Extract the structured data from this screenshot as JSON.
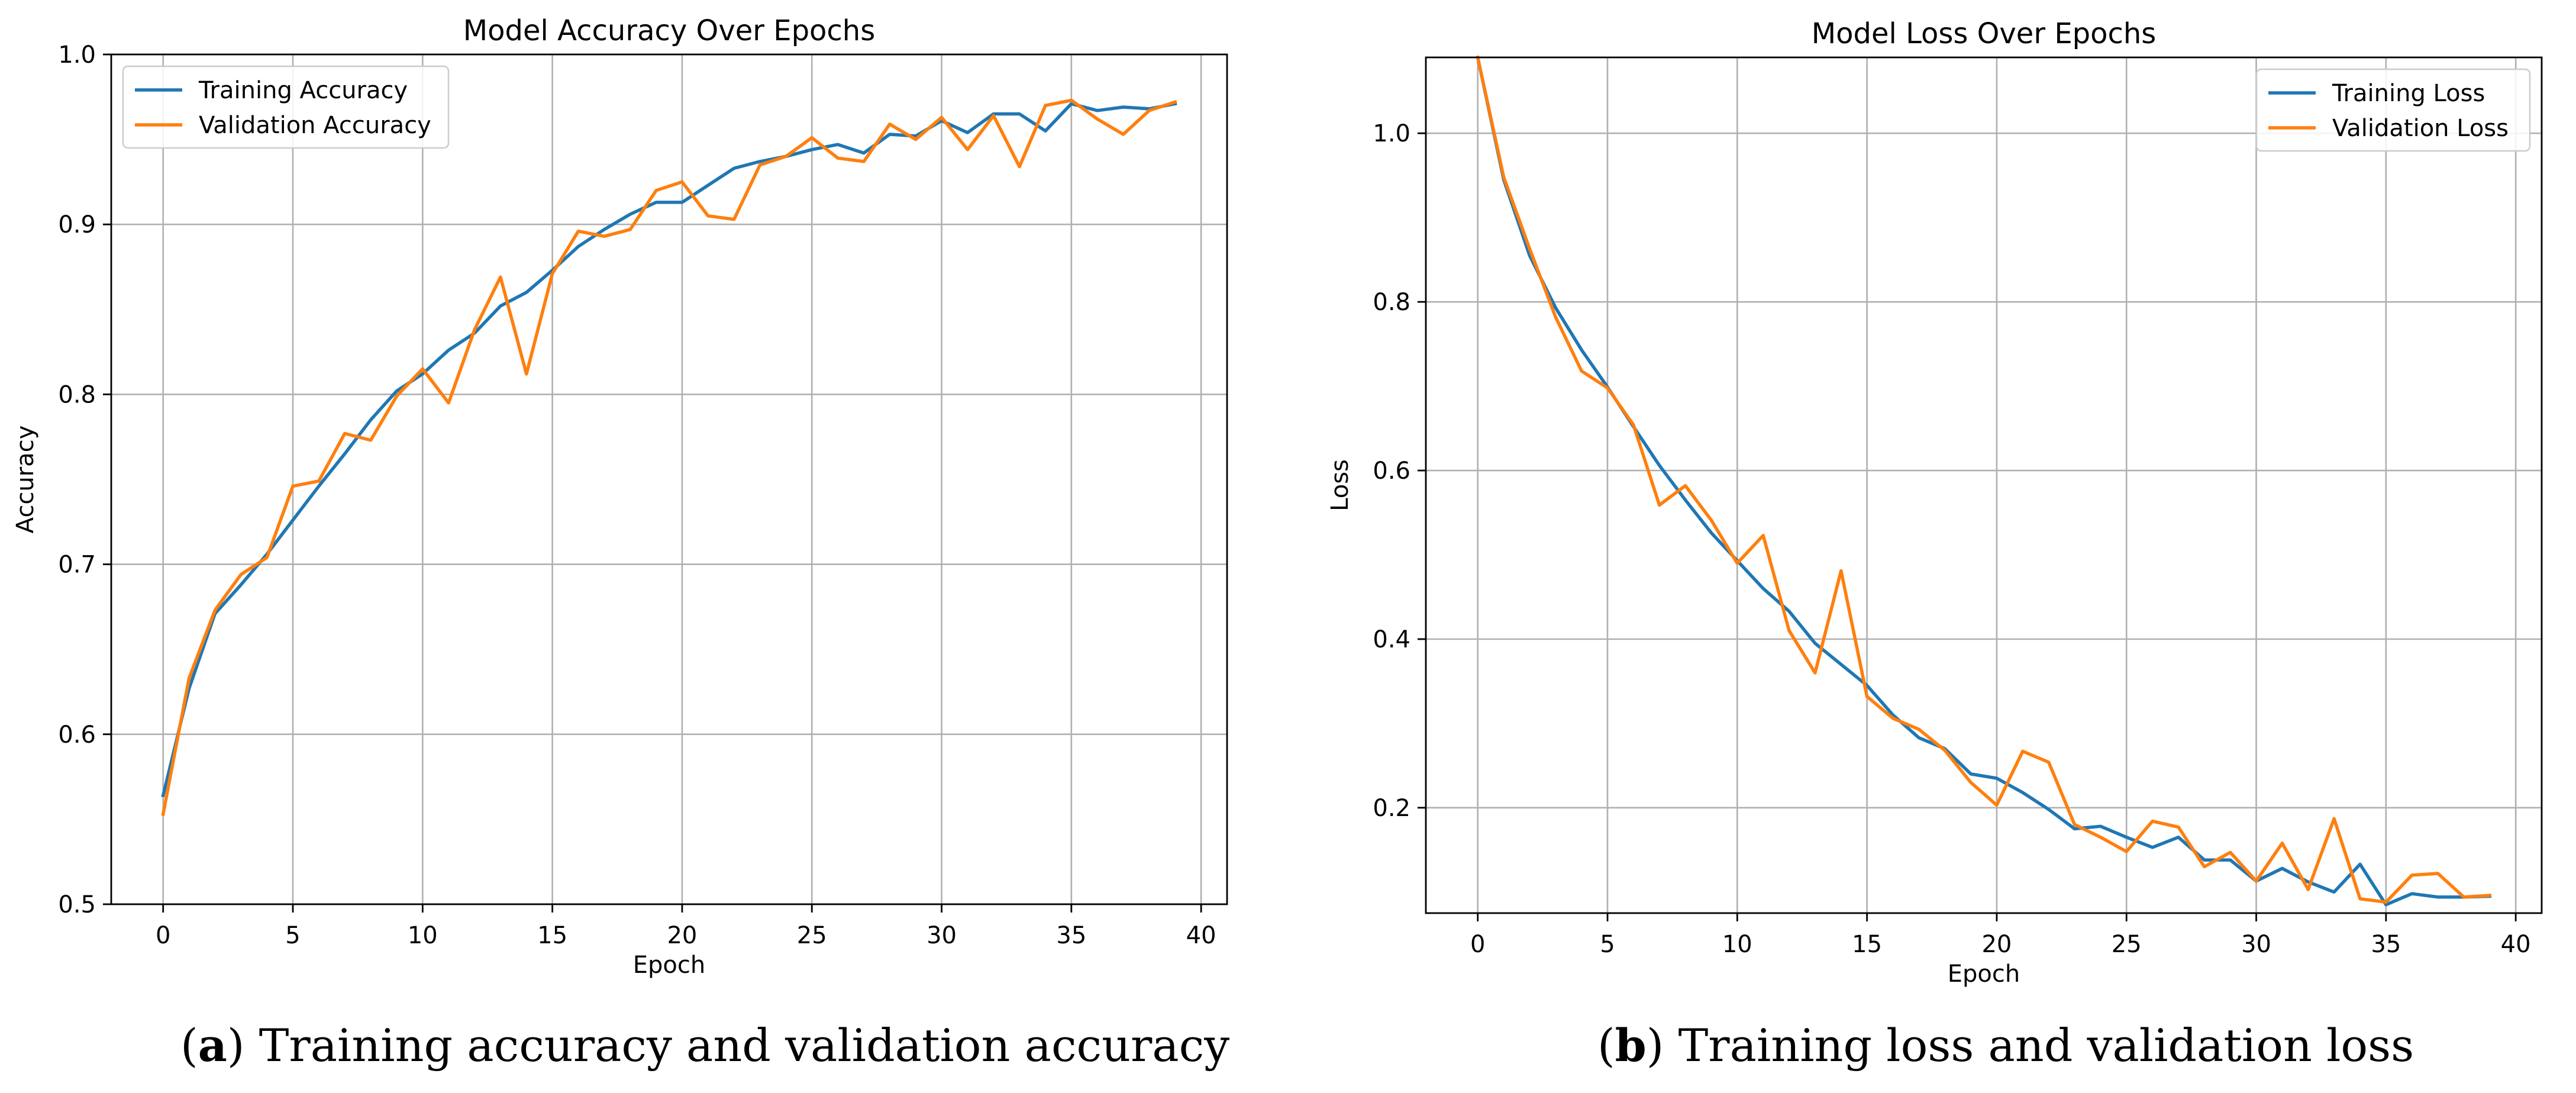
{
  "colors": {
    "training": "#1f77b4",
    "validation": "#ff7f0e",
    "grid": "#b0b0b0",
    "axis": "#000000"
  },
  "chart_data": [
    {
      "type": "line",
      "title": "Model Accuracy Over Epochs",
      "xlabel": "Epoch",
      "ylabel": "Accuracy",
      "xlim": [
        -2,
        41
      ],
      "ylim": [
        0.5,
        1.0
      ],
      "xticks": [
        0,
        5,
        10,
        15,
        20,
        25,
        30,
        35,
        40
      ],
      "yticks": [
        0.5,
        0.6,
        0.7,
        0.8,
        0.9,
        1.0
      ],
      "xtick_labels": [
        "0",
        "5",
        "10",
        "15",
        "20",
        "25",
        "30",
        "35",
        "40"
      ],
      "ytick_labels": [
        "0.5",
        "0.6",
        "0.7",
        "0.8",
        "0.9",
        "1.0"
      ],
      "grid": true,
      "legend": "top-left",
      "series": [
        {
          "name": "Training Accuracy",
          "color": "#1f77b4",
          "x": [
            0,
            1,
            2,
            3,
            4,
            5,
            6,
            7,
            8,
            9,
            10,
            11,
            12,
            13,
            14,
            15,
            16,
            17,
            18,
            19,
            20,
            21,
            22,
            23,
            24,
            25,
            26,
            27,
            28,
            29,
            30,
            31,
            32,
            33,
            34,
            35,
            36,
            37,
            38,
            39
          ],
          "values": [
            0.564,
            0.627,
            0.671,
            0.688,
            0.706,
            0.726,
            0.746,
            0.765,
            0.785,
            0.802,
            0.812,
            0.826,
            0.836,
            0.852,
            0.86,
            0.873,
            0.887,
            0.897,
            0.906,
            0.913,
            0.913,
            0.923,
            0.933,
            0.937,
            0.94,
            0.944,
            0.947,
            0.942,
            0.953,
            0.952,
            0.961,
            0.954,
            0.965,
            0.965,
            0.955,
            0.971,
            0.967,
            0.969,
            0.968,
            0.971
          ]
        },
        {
          "name": "Validation Accuracy",
          "color": "#ff7f0e",
          "x": [
            0,
            1,
            2,
            3,
            4,
            5,
            6,
            7,
            8,
            9,
            10,
            11,
            12,
            13,
            14,
            15,
            16,
            17,
            18,
            19,
            20,
            21,
            22,
            23,
            24,
            25,
            26,
            27,
            28,
            29,
            30,
            31,
            32,
            33,
            34,
            35,
            36,
            37,
            38,
            39
          ],
          "values": [
            0.553,
            0.633,
            0.673,
            0.694,
            0.704,
            0.746,
            0.749,
            0.777,
            0.773,
            0.799,
            0.815,
            0.795,
            0.838,
            0.869,
            0.812,
            0.871,
            0.896,
            0.893,
            0.897,
            0.92,
            0.925,
            0.905,
            0.903,
            0.935,
            0.94,
            0.951,
            0.939,
            0.937,
            0.959,
            0.95,
            0.963,
            0.944,
            0.964,
            0.934,
            0.97,
            0.973,
            0.962,
            0.953,
            0.967,
            0.972
          ]
        }
      ]
    },
    {
      "type": "line",
      "title": "Model Loss Over Epochs",
      "xlabel": "Epoch",
      "ylabel": "Loss",
      "xlim": [
        -2,
        41
      ],
      "ylim": [
        0.075,
        1.09
      ],
      "xticks": [
        0,
        5,
        10,
        15,
        20,
        25,
        30,
        35,
        40
      ],
      "yticks": [
        0.2,
        0.4,
        0.6,
        0.8,
        1.0
      ],
      "xtick_labels": [
        "0",
        "5",
        "10",
        "15",
        "20",
        "25",
        "30",
        "35",
        "40"
      ],
      "ytick_labels": [
        "0.2",
        "0.4",
        "0.6",
        "0.8",
        "1.0"
      ],
      "grid": true,
      "legend": "top-right",
      "series": [
        {
          "name": "Training Loss",
          "color": "#1f77b4",
          "x": [
            0,
            1,
            2,
            3,
            4,
            5,
            6,
            7,
            8,
            9,
            10,
            11,
            12,
            13,
            14,
            15,
            16,
            17,
            18,
            19,
            20,
            21,
            22,
            23,
            24,
            25,
            26,
            27,
            28,
            29,
            30,
            31,
            32,
            33,
            34,
            35,
            36,
            37,
            38,
            39
          ],
          "values": [
            1.09,
            0.945,
            0.855,
            0.793,
            0.743,
            0.699,
            0.652,
            0.606,
            0.565,
            0.526,
            0.493,
            0.46,
            0.433,
            0.395,
            0.37,
            0.345,
            0.31,
            0.283,
            0.27,
            0.24,
            0.235,
            0.218,
            0.198,
            0.175,
            0.178,
            0.165,
            0.153,
            0.165,
            0.138,
            0.138,
            0.113,
            0.128,
            0.112,
            0.1,
            0.133,
            0.085,
            0.098,
            0.094,
            0.094,
            0.095
          ]
        },
        {
          "name": "Validation Loss",
          "color": "#ff7f0e",
          "x": [
            0,
            1,
            2,
            3,
            4,
            5,
            6,
            7,
            8,
            9,
            10,
            11,
            12,
            13,
            14,
            15,
            16,
            17,
            18,
            19,
            20,
            21,
            22,
            23,
            24,
            25,
            26,
            27,
            28,
            29,
            30,
            31,
            32,
            33,
            34,
            35,
            36,
            37,
            38,
            39
          ],
          "values": [
            1.09,
            0.948,
            0.863,
            0.782,
            0.718,
            0.698,
            0.654,
            0.559,
            0.582,
            0.541,
            0.49,
            0.523,
            0.41,
            0.36,
            0.481,
            0.332,
            0.306,
            0.293,
            0.268,
            0.23,
            0.203,
            0.267,
            0.254,
            0.18,
            0.165,
            0.148,
            0.184,
            0.177,
            0.13,
            0.147,
            0.113,
            0.158,
            0.103,
            0.187,
            0.092,
            0.088,
            0.12,
            0.122,
            0.094,
            0.096
          ]
        }
      ]
    }
  ],
  "captions": [
    {
      "label": "a",
      "text": "Training accuracy and validation accuracy"
    },
    {
      "label": "b",
      "text": "Training loss and validation loss"
    }
  ]
}
